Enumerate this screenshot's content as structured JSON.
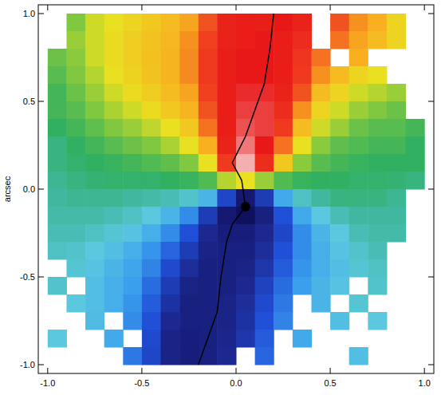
{
  "chart_data": {
    "type": "heatmap",
    "y_label": "arcsec",
    "xlim": [
      -1.05,
      1.05
    ],
    "ylim": [
      -1.05,
      1.05
    ],
    "xticks": [
      {
        "value": -1,
        "label": "-1.0"
      },
      {
        "value": -0.5,
        "label": "-0.5"
      },
      {
        "value": 0,
        "label": "0.0"
      },
      {
        "value": 0.5,
        "label": "0.5"
      },
      {
        "value": 1,
        "label": "1.0"
      }
    ],
    "yticks": [
      {
        "value": -1,
        "label": "-1.0"
      },
      {
        "value": -0.5,
        "label": "-0.5"
      },
      {
        "value": 0,
        "label": "0.0"
      },
      {
        "value": 0.5,
        "label": "0.5"
      },
      {
        "value": 1,
        "label": "1.0"
      }
    ],
    "zlim": [
      -100,
      100
    ],
    "x": [
      -0.95,
      -0.85,
      -0.75,
      -0.65,
      -0.55,
      -0.45,
      -0.35,
      -0.25,
      -0.15,
      -0.05,
      0.05,
      0.15,
      0.25,
      0.35,
      0.45,
      0.55,
      0.65,
      0.75,
      0.85,
      0.95
    ],
    "y": [
      0.95,
      0.85,
      0.75,
      0.65,
      0.55,
      0.45,
      0.35,
      0.25,
      0.15,
      0.05,
      -0.05,
      -0.15,
      -0.25,
      -0.35,
      -0.45,
      -0.55,
      -0.65,
      -0.75,
      -0.85,
      -0.95
    ],
    "cells": [
      [
        null,
        20,
        35,
        40,
        45,
        50,
        55,
        62,
        75,
        88,
        90,
        90,
        92,
        88,
        null,
        75,
        65,
        60,
        45,
        null
      ],
      [
        null,
        25,
        35,
        42,
        48,
        52,
        57,
        65,
        78,
        88,
        90,
        92,
        90,
        85,
        null,
        70,
        62,
        55,
        45,
        null
      ],
      [
        15,
        22,
        35,
        42,
        48,
        53,
        58,
        66,
        80,
        90,
        92,
        92,
        90,
        82,
        70,
        null,
        60,
        null,
        null,
        null
      ],
      [
        10,
        20,
        30,
        40,
        46,
        52,
        58,
        66,
        80,
        90,
        92,
        92,
        90,
        80,
        65,
        55,
        45,
        40,
        null,
        null
      ],
      [
        5,
        15,
        25,
        35,
        42,
        48,
        55,
        62,
        78,
        90,
        93,
        93,
        88,
        75,
        55,
        45,
        35,
        30,
        25,
        null
      ],
      [
        5,
        10,
        20,
        28,
        35,
        42,
        50,
        58,
        75,
        90,
        94,
        94,
        85,
        65,
        45,
        35,
        25,
        20,
        15,
        null
      ],
      [
        0,
        5,
        12,
        20,
        25,
        32,
        40,
        50,
        70,
        90,
        95,
        94,
        80,
        55,
        35,
        25,
        15,
        10,
        10,
        5
      ],
      [
        -5,
        0,
        5,
        10,
        15,
        20,
        28,
        40,
        60,
        88,
        97,
        92,
        70,
        40,
        22,
        12,
        8,
        5,
        5,
        0
      ],
      [
        -5,
        -2,
        0,
        2,
        5,
        8,
        12,
        20,
        40,
        80,
        100,
        85,
        50,
        22,
        10,
        5,
        2,
        0,
        0,
        0
      ],
      [
        -8,
        -5,
        -3,
        -2,
        -2,
        -2,
        0,
        2,
        8,
        30,
        40,
        25,
        8,
        2,
        0,
        0,
        -2,
        -2,
        -3,
        -5
      ],
      [
        -10,
        -8,
        -8,
        -8,
        -10,
        -12,
        -15,
        -20,
        -35,
        -70,
        -95,
        -75,
        -40,
        -18,
        -10,
        -5,
        -5,
        -5,
        -8,
        null
      ],
      [
        -12,
        -12,
        -12,
        -15,
        -18,
        -25,
        -35,
        -50,
        -75,
        -95,
        -100,
        -90,
        -65,
        -40,
        -25,
        -15,
        -10,
        -10,
        -10,
        null
      ],
      [
        -15,
        -15,
        -18,
        -22,
        -28,
        -38,
        -50,
        -65,
        -85,
        -92,
        -92,
        -85,
        -70,
        -50,
        -35,
        -25,
        -15,
        -12,
        -12,
        null
      ],
      [
        -18,
        -20,
        -25,
        -30,
        -38,
        -48,
        -60,
        -75,
        -88,
        -90,
        -90,
        -82,
        -65,
        -50,
        -38,
        -28,
        -20,
        -15,
        null,
        null
      ],
      [
        null,
        -22,
        -28,
        -35,
        -42,
        -52,
        -68,
        -82,
        -90,
        -90,
        -88,
        -78,
        -62,
        -48,
        -38,
        -30,
        -22,
        -18,
        null,
        null
      ],
      [
        -20,
        null,
        -30,
        -38,
        -45,
        -58,
        -75,
        -88,
        -90,
        -90,
        -85,
        -72,
        -58,
        -45,
        -35,
        -28,
        null,
        -20,
        null,
        null
      ],
      [
        null,
        -25,
        -30,
        -38,
        -48,
        -62,
        -80,
        -90,
        -90,
        -88,
        -82,
        -68,
        -55,
        null,
        -35,
        null,
        -22,
        null,
        null,
        null
      ],
      [
        null,
        null,
        -32,
        null,
        -50,
        -65,
        -85,
        -90,
        -90,
        -88,
        -80,
        -65,
        -52,
        null,
        null,
        -30,
        null,
        -25,
        null,
        null
      ],
      [
        -25,
        null,
        null,
        -40,
        null,
        -68,
        -88,
        -92,
        -90,
        -86,
        -78,
        -62,
        null,
        -40,
        null,
        null,
        null,
        null,
        null,
        null
      ],
      [
        null,
        null,
        null,
        null,
        -55,
        -70,
        -88,
        -92,
        -90,
        -85,
        null,
        -60,
        null,
        null,
        null,
        null,
        -30,
        null,
        null,
        null
      ]
    ],
    "curve": {
      "x": [
        0.2,
        0.18,
        0.15,
        0.1,
        0.05,
        -0.02,
        0.03,
        0.05,
        -0.02,
        -0.05,
        -0.08,
        -0.1,
        -0.15,
        -0.2
      ],
      "y": [
        1.0,
        0.8,
        0.6,
        0.45,
        0.3,
        0.15,
        0.05,
        -0.1,
        -0.2,
        -0.3,
        -0.5,
        -0.7,
        -0.85,
        -1.0
      ]
    },
    "nucleus": {
      "x": 0.05,
      "y": -0.1
    }
  }
}
